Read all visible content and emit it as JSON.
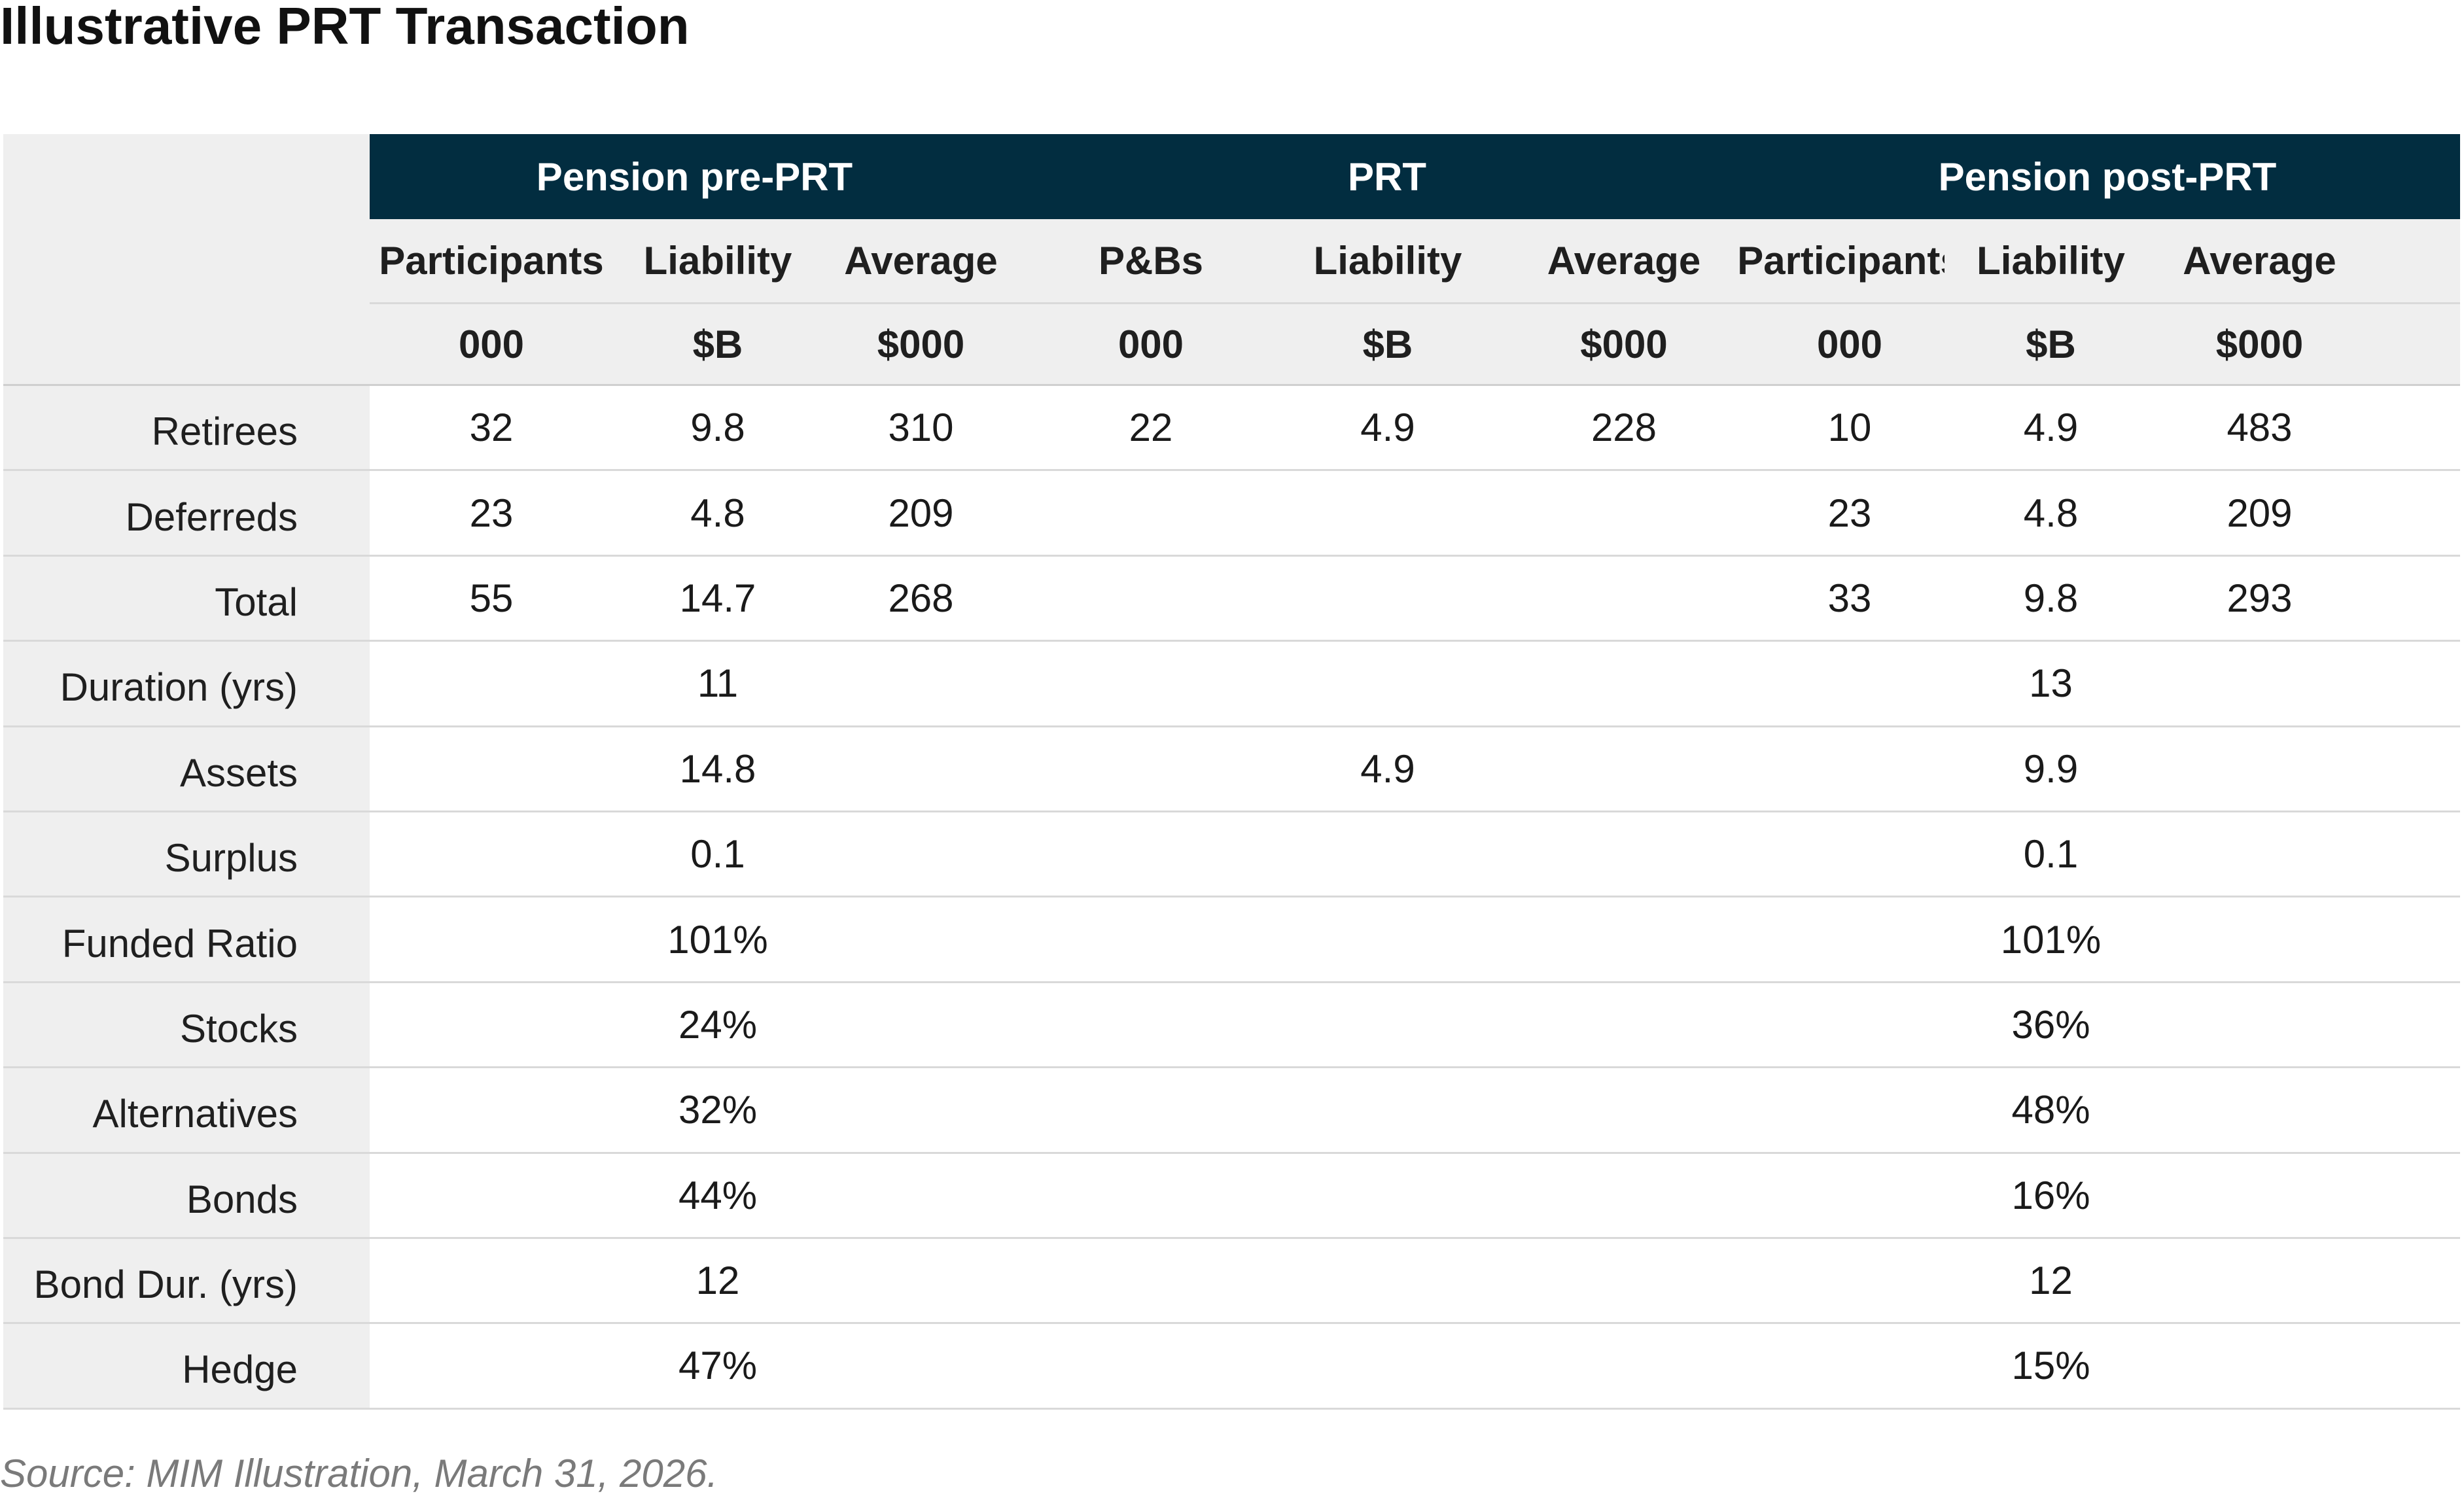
{
  "title": "Illustrative PRT Transaction",
  "groups": [
    "Pension pre-PRT",
    "PRT",
    "Pension post-PRT"
  ],
  "columns": [
    {
      "name": "Participants",
      "unit": "000"
    },
    {
      "name": "Liability",
      "unit": "$B"
    },
    {
      "name": "Average",
      "unit": "$000"
    },
    {
      "name": "P&Bs",
      "unit": "000"
    },
    {
      "name": "Liability",
      "unit": "$B"
    },
    {
      "name": "Average",
      "unit": "$000"
    },
    {
      "name": "Participants",
      "unit": "000"
    },
    {
      "name": "Liability",
      "unit": "$B"
    },
    {
      "name": "Average",
      "unit": "$000"
    }
  ],
  "rows": [
    {
      "label": "Retirees",
      "values": [
        "32",
        "9.8",
        "310",
        "22",
        "4.9",
        "228",
        "10",
        "4.9",
        "483"
      ]
    },
    {
      "label": "Deferreds",
      "values": [
        "23",
        "4.8",
        "209",
        "",
        "",
        "",
        "23",
        "4.8",
        "209"
      ]
    },
    {
      "label": "Total",
      "values": [
        "55",
        "14.7",
        "268",
        "",
        "",
        "",
        "33",
        "9.8",
        "293"
      ]
    },
    {
      "label": "Duration (yrs)",
      "values": [
        "",
        "11",
        "",
        "",
        "",
        "",
        "",
        "13",
        ""
      ]
    },
    {
      "label": "Assets",
      "values": [
        "",
        "14.8",
        "",
        "",
        "4.9",
        "",
        "",
        "9.9",
        ""
      ]
    },
    {
      "label": "Surplus",
      "values": [
        "",
        "0.1",
        "",
        "",
        "",
        "",
        "",
        "0.1",
        ""
      ]
    },
    {
      "label": "Funded Ratio",
      "values": [
        "",
        "101%",
        "",
        "",
        "",
        "",
        "",
        "101%",
        ""
      ]
    },
    {
      "label": "Stocks",
      "values": [
        "",
        "24%",
        "",
        "",
        "",
        "",
        "",
        "36%",
        ""
      ]
    },
    {
      "label": "Alternatives",
      "values": [
        "",
        "32%",
        "",
        "",
        "",
        "",
        "",
        "48%",
        ""
      ]
    },
    {
      "label": "Bonds",
      "values": [
        "",
        "44%",
        "",
        "",
        "",
        "",
        "",
        "16%",
        ""
      ]
    },
    {
      "label": "Bond Dur. (yrs)",
      "values": [
        "",
        "12",
        "",
        "",
        "",
        "",
        "",
        "12",
        ""
      ]
    },
    {
      "label": "Hedge",
      "values": [
        "",
        "47%",
        "",
        "",
        "",
        "",
        "",
        "15%",
        ""
      ]
    }
  ],
  "source": "Source: MIM Illustration, March 31, 2026.",
  "colors": {
    "header_bg": "#022d40",
    "label_bg": "#efefef"
  }
}
